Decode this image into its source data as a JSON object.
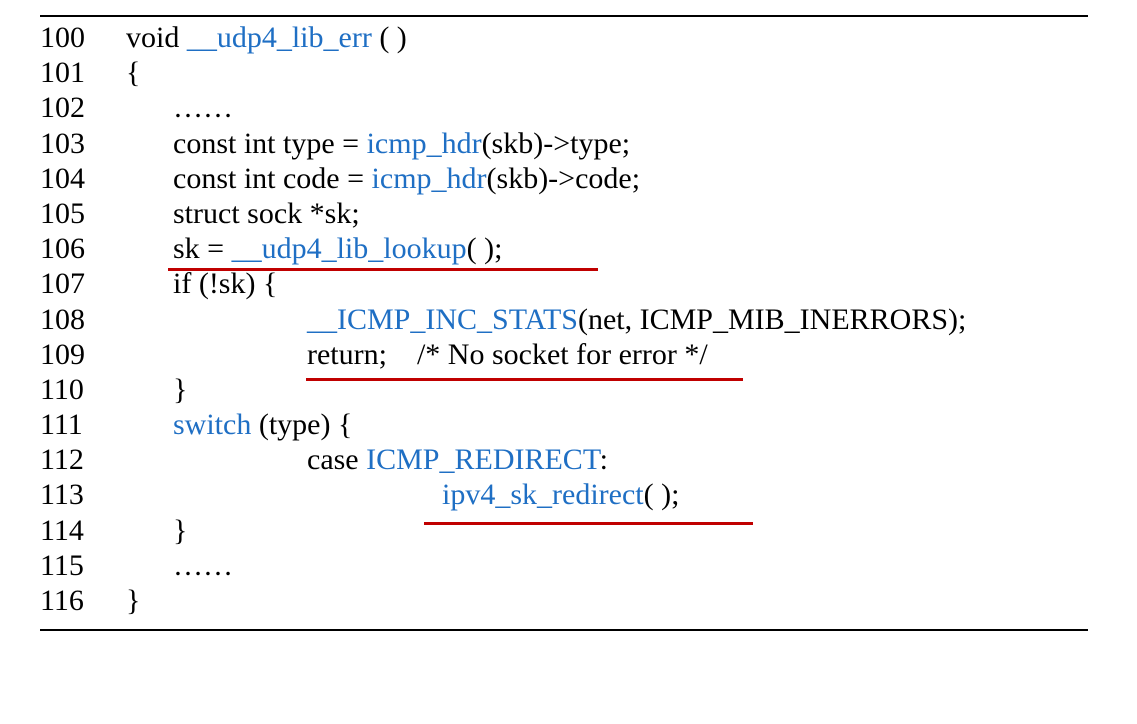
{
  "code_listing": {
    "lines": [
      {
        "num": "100",
        "parts": [
          "void ",
          "__udp4_lib_err",
          " ( )"
        ]
      },
      {
        "num": "101",
        "parts": [
          "{"
        ]
      },
      {
        "num": "102",
        "parts": [
          "……"
        ]
      },
      {
        "num": "103",
        "parts": [
          "const int type = ",
          "icmp_hdr",
          "(skb)->type;"
        ]
      },
      {
        "num": "104",
        "parts": [
          "const int code = ",
          "icmp_hdr",
          "(skb)->code;"
        ]
      },
      {
        "num": "105",
        "parts": [
          "struct sock *sk;"
        ]
      },
      {
        "num": "106",
        "parts": [
          "sk = ",
          "__udp4_lib_lookup",
          "( );"
        ]
      },
      {
        "num": "107",
        "parts": [
          "if (!sk) {"
        ]
      },
      {
        "num": "108",
        "parts": [
          "__ICMP_INC_STATS",
          "(net, ICMP_MIB_INERRORS);"
        ]
      },
      {
        "num": "109",
        "parts": [
          "return;    /* No socket for error */"
        ]
      },
      {
        "num": "110",
        "parts": [
          "}"
        ]
      },
      {
        "num": "111",
        "parts": [
          "switch",
          " (type) {"
        ]
      },
      {
        "num": "112",
        "parts": [
          "case ",
          "ICMP_REDIRECT",
          ":"
        ]
      },
      {
        "num": "113",
        "parts": [
          "ipv4_sk_redirect",
          "( );"
        ]
      },
      {
        "num": "114",
        "parts": [
          "}"
        ]
      },
      {
        "num": "115",
        "parts": [
          "……"
        ]
      },
      {
        "num": "116",
        "parts": [
          "}"
        ]
      }
    ],
    "colors": {
      "identifier": "#1f6fc4",
      "highlight_underline": "#c00000",
      "text": "#000000"
    }
  }
}
